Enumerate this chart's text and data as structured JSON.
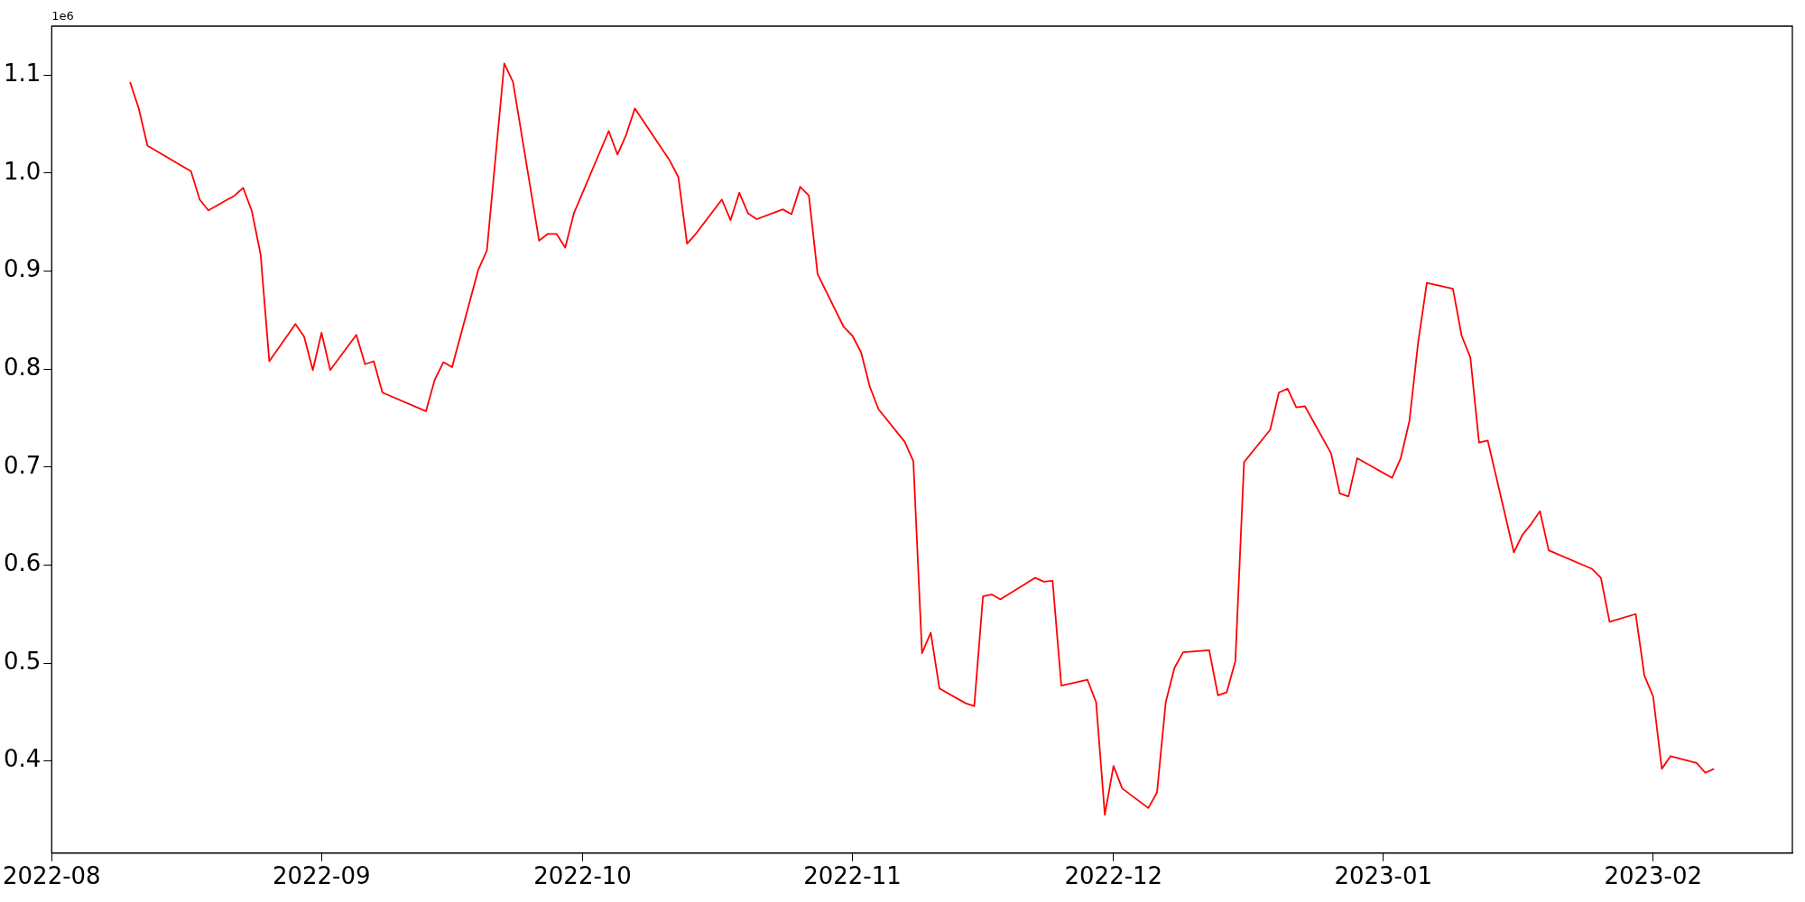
{
  "chart_data": {
    "type": "line",
    "annotations": [
      "1e6"
    ],
    "grid": false,
    "legend": false,
    "marker": "none",
    "line_style": "solid",
    "xlim": [
      "2022-08-01",
      "2023-02-17"
    ],
    "xticks": [
      "2022-08",
      "2022-09",
      "2022-10",
      "2022-11",
      "2022-12",
      "2023-01",
      "2023-02"
    ],
    "ylim": [
      0.306,
      1.15
    ],
    "yticks": [
      0.4,
      0.5,
      0.6,
      0.7,
      0.8,
      0.9,
      {
        "value": 1,
        "label": "1.0"
      },
      1.1
    ],
    "x": [
      "2022-08-10",
      "2022-08-11",
      "2022-08-12",
      "2022-08-16",
      "2022-08-17",
      "2022-08-18",
      "2022-08-19",
      "2022-08-22",
      "2022-08-23",
      "2022-08-24",
      "2022-08-25",
      "2022-08-26",
      "2022-08-29",
      "2022-08-30",
      "2022-08-31",
      "2022-09-01",
      "2022-09-02",
      "2022-09-05",
      "2022-09-06",
      "2022-09-07",
      "2022-09-08",
      "2022-09-13",
      "2022-09-14",
      "2022-09-15",
      "2022-09-16",
      "2022-09-19",
      "2022-09-20",
      "2022-09-22",
      "2022-09-23",
      "2022-09-26",
      "2022-09-27",
      "2022-09-28",
      "2022-09-29",
      "2022-09-30",
      "2022-10-04",
      "2022-10-05",
      "2022-10-06",
      "2022-10-07",
      "2022-10-11",
      "2022-10-12",
      "2022-10-13",
      "2022-10-14",
      "2022-10-17",
      "2022-10-18",
      "2022-10-19",
      "2022-10-20",
      "2022-10-21",
      "2022-10-24",
      "2022-10-25",
      "2022-10-26",
      "2022-10-27",
      "2022-10-28",
      "2022-10-31",
      "2022-11-01",
      "2022-11-02",
      "2022-11-03",
      "2022-11-04",
      "2022-11-07",
      "2022-11-08",
      "2022-11-09",
      "2022-11-10",
      "2022-11-11",
      "2022-11-14",
      "2022-11-15",
      "2022-11-16",
      "2022-11-17",
      "2022-11-18",
      "2022-11-22",
      "2022-11-23",
      "2022-11-24",
      "2022-11-25",
      "2022-11-28",
      "2022-11-29",
      "2022-11-30",
      "2022-12-01",
      "2022-12-02",
      "2022-12-05",
      "2022-12-06",
      "2022-12-07",
      "2022-12-08",
      "2022-12-09",
      "2022-12-12",
      "2022-12-13",
      "2022-12-14",
      "2022-12-15",
      "2022-12-16",
      "2022-12-19",
      "2022-12-20",
      "2022-12-21",
      "2022-12-22",
      "2022-12-23",
      "2022-12-26",
      "2022-12-27",
      "2022-12-28",
      "2022-12-29",
      "2023-01-02",
      "2023-01-03",
      "2023-01-04",
      "2023-01-05",
      "2023-01-06",
      "2023-01-09",
      "2023-01-10",
      "2023-01-11",
      "2023-01-12",
      "2023-01-13",
      "2023-01-16",
      "2023-01-17",
      "2023-01-18",
      "2023-01-19",
      "2023-01-20",
      "2023-01-25",
      "2023-01-26",
      "2023-01-27",
      "2023-01-30",
      "2023-01-31",
      "2023-02-01",
      "2023-02-02",
      "2023-02-03",
      "2023-02-06",
      "2023-02-07",
      "2023-02-08"
    ],
    "series": [
      {
        "color": "#ff0000",
        "values": [
          1.093,
          1.066,
          1.028,
          1.007,
          1.002,
          0.973,
          0.962,
          0.977,
          0.985,
          0.961,
          0.917,
          0.808,
          0.846,
          0.833,
          0.799,
          0.837,
          0.799,
          0.835,
          0.805,
          0.808,
          0.776,
          0.757,
          0.789,
          0.807,
          0.802,
          0.901,
          0.921,
          1.112,
          1.093,
          0.931,
          0.938,
          0.938,
          0.924,
          0.959,
          1.043,
          1.019,
          1.039,
          1.066,
          1.013,
          0.996,
          0.928,
          0.938,
          0.973,
          0.952,
          0.98,
          0.959,
          0.953,
          0.963,
          0.958,
          0.986,
          0.977,
          0.897,
          0.843,
          0.834,
          0.817,
          0.782,
          0.759,
          0.726,
          0.706,
          0.51,
          0.531,
          0.474,
          0.459,
          0.456,
          0.568,
          0.57,
          0.565,
          0.587,
          0.583,
          0.584,
          0.477,
          0.483,
          0.46,
          0.345,
          0.395,
          0.372,
          0.352,
          0.368,
          0.46,
          0.495,
          0.511,
          0.513,
          0.467,
          0.47,
          0.502,
          0.705,
          0.738,
          0.776,
          0.78,
          0.761,
          0.762,
          0.714,
          0.673,
          0.67,
          0.709,
          0.689,
          0.709,
          0.747,
          0.827,
          0.888,
          0.882,
          0.834,
          0.812,
          0.725,
          0.727,
          0.613,
          0.631,
          0.642,
          0.655,
          0.615,
          0.596,
          0.587,
          0.542,
          0.55,
          0.487,
          0.466,
          0.392,
          0.405,
          0.398,
          0.388,
          0.392
        ]
      }
    ]
  }
}
